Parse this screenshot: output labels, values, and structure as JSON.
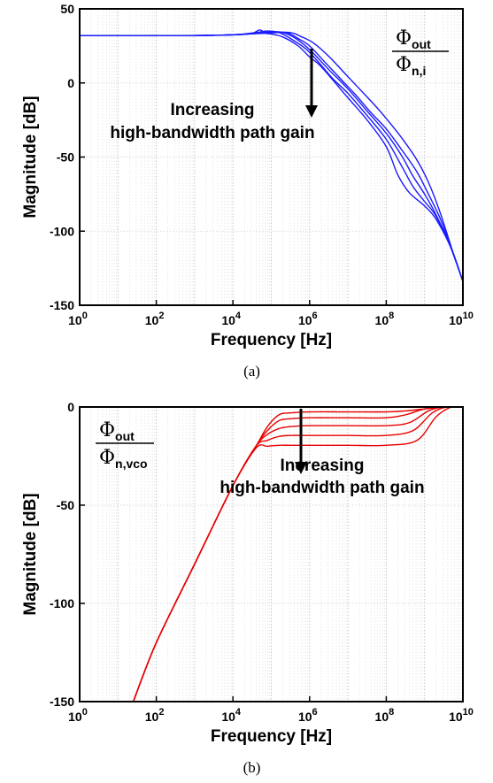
{
  "chart_data": [
    {
      "type": "line",
      "caption": "(a)",
      "xlabel": "Frequency [Hz]",
      "ylabel": "Magnitude [dB]",
      "xscale": "log",
      "xlim_exp": [
        0,
        10
      ],
      "ylim": [
        -150,
        50
      ],
      "yticks": [
        50,
        0,
        -50,
        -100,
        -150
      ],
      "grid": "minor-log-x",
      "color": "#1a1aff",
      "legend_fraction": {
        "num_base": "Φ",
        "num_sub": "out",
        "den_base": "Φ",
        "den_sub": "n,i"
      },
      "legend_placement": "top-right",
      "annotation": {
        "line1": "Increasing",
        "line2": "high-bandwidth path gain",
        "arrow": "down"
      },
      "series": [
        {
          "values": [
            [
              0,
              32
            ],
            [
              2,
              32
            ],
            [
              3,
              32
            ],
            [
              4,
              32.4
            ],
            [
              4.5,
              33.5
            ],
            [
              4.7,
              35.8
            ],
            [
              4.85,
              33.5
            ],
            [
              5,
              33
            ],
            [
              5.3,
              31
            ],
            [
              5.7,
              25
            ],
            [
              6,
              17.5
            ],
            [
              6.3,
              11
            ],
            [
              7,
              -10
            ],
            [
              7.5,
              -25
            ],
            [
              8,
              -43
            ],
            [
              8.3,
              -62
            ],
            [
              8.6,
              -74
            ],
            [
              9,
              -83
            ],
            [
              9.3,
              -92
            ],
            [
              9.7,
              -112
            ],
            [
              10,
              -134
            ]
          ]
        },
        {
          "values": [
            [
              0,
              32
            ],
            [
              2,
              32
            ],
            [
              3,
              32
            ],
            [
              4,
              32.5
            ],
            [
              4.6,
              34
            ],
            [
              4.9,
              35
            ],
            [
              5.2,
              34
            ],
            [
              5.5,
              30
            ],
            [
              5.9,
              23
            ],
            [
              6.2,
              15
            ],
            [
              6.6,
              3
            ],
            [
              7,
              -7
            ],
            [
              7.5,
              -22
            ],
            [
              8,
              -38
            ],
            [
              8.4,
              -56
            ],
            [
              8.7,
              -70
            ],
            [
              9,
              -80
            ],
            [
              9.3,
              -90
            ],
            [
              9.7,
              -112
            ],
            [
              10,
              -134
            ]
          ]
        },
        {
          "values": [
            [
              0,
              32
            ],
            [
              2,
              32
            ],
            [
              3,
              32
            ],
            [
              4,
              32.5
            ],
            [
              4.8,
              34
            ],
            [
              5.2,
              34.5
            ],
            [
              5.5,
              32
            ],
            [
              5.8,
              27
            ],
            [
              6.1,
              20
            ],
            [
              6.5,
              9
            ],
            [
              7,
              -4
            ],
            [
              7.5,
              -19
            ],
            [
              8,
              -34
            ],
            [
              8.4,
              -49
            ],
            [
              8.7,
              -63
            ],
            [
              9,
              -75
            ],
            [
              9.3,
              -89
            ],
            [
              9.7,
              -112
            ],
            [
              10,
              -134
            ]
          ]
        },
        {
          "values": [
            [
              0,
              32
            ],
            [
              2,
              32
            ],
            [
              3,
              32
            ],
            [
              4,
              32.5
            ],
            [
              5,
              34
            ],
            [
              5.4,
              34
            ],
            [
              5.7,
              30
            ],
            [
              6,
              25
            ],
            [
              6.4,
              14
            ],
            [
              6.8,
              3
            ],
            [
              7.2,
              -8
            ],
            [
              7.6,
              -20
            ],
            [
              8,
              -31
            ],
            [
              8.4,
              -45
            ],
            [
              8.8,
              -60
            ],
            [
              9.1,
              -75
            ],
            [
              9.4,
              -91
            ],
            [
              9.7,
              -112
            ],
            [
              10,
              -134
            ]
          ]
        },
        {
          "values": [
            [
              0,
              32
            ],
            [
              2,
              32
            ],
            [
              3,
              32
            ],
            [
              4,
              32.5
            ],
            [
              5,
              33.8
            ],
            [
              5.5,
              34
            ],
            [
              5.8,
              31
            ],
            [
              6.1,
              27
            ],
            [
              6.5,
              18
            ],
            [
              6.9,
              7
            ],
            [
              7.3,
              -4
            ],
            [
              7.7,
              -15
            ],
            [
              8,
              -24
            ],
            [
              8.4,
              -37
            ],
            [
              8.8,
              -52
            ],
            [
              9.1,
              -67
            ],
            [
              9.4,
              -87
            ],
            [
              9.7,
              -111
            ],
            [
              10,
              -134
            ]
          ]
        }
      ]
    },
    {
      "type": "line",
      "caption": "(b)",
      "xlabel": "Frequency [Hz]",
      "ylabel": "Magnitude [dB]",
      "xscale": "log",
      "xlim_exp": [
        0,
        10
      ],
      "ylim": [
        -150,
        0
      ],
      "yticks": [
        0,
        -50,
        -100,
        -150
      ],
      "grid": "minor-log-x",
      "color": "#e60000",
      "legend_fraction": {
        "num_base": "Φ",
        "num_sub": "out",
        "den_base": "Φ",
        "den_sub": "n,vco"
      },
      "legend_placement": "top-left",
      "annotation": {
        "line1": "Increasing",
        "line2": "high-bandwidth path gain",
        "arrow": "down"
      },
      "series": [
        {
          "values": [
            [
              1.4,
              -150
            ],
            [
              2,
              -120
            ],
            [
              3,
              -80
            ],
            [
              4,
              -40
            ],
            [
              4.6,
              -20
            ],
            [
              4.9,
              -10
            ],
            [
              5.2,
              -4
            ],
            [
              5.5,
              -3
            ],
            [
              6,
              -2.5
            ],
            [
              7,
              -2.5
            ],
            [
              8,
              -2.5
            ],
            [
              8.5,
              -2
            ],
            [
              9,
              -1
            ],
            [
              9.5,
              0
            ],
            [
              10,
              0
            ]
          ]
        },
        {
          "values": [
            [
              1.4,
              -150
            ],
            [
              2,
              -120
            ],
            [
              3,
              -80
            ],
            [
              4,
              -40
            ],
            [
              4.6,
              -20
            ],
            [
              4.9,
              -12
            ],
            [
              5.2,
              -7
            ],
            [
              5.5,
              -6
            ],
            [
              6,
              -5.5
            ],
            [
              7,
              -5.5
            ],
            [
              8,
              -5.5
            ],
            [
              8.5,
              -4
            ],
            [
              9,
              -1
            ],
            [
              9.5,
              0
            ],
            [
              10,
              0
            ]
          ]
        },
        {
          "values": [
            [
              1.4,
              -150
            ],
            [
              2,
              -120
            ],
            [
              3,
              -80
            ],
            [
              4,
              -40
            ],
            [
              4.6,
              -20
            ],
            [
              4.9,
              -14
            ],
            [
              5.2,
              -11
            ],
            [
              5.5,
              -10
            ],
            [
              6,
              -9.5
            ],
            [
              7,
              -9.5
            ],
            [
              8,
              -9.5
            ],
            [
              8.6,
              -8
            ],
            [
              9.1,
              -2
            ],
            [
              9.5,
              0
            ],
            [
              10,
              0
            ]
          ]
        },
        {
          "values": [
            [
              1.4,
              -150
            ],
            [
              2,
              -120
            ],
            [
              3,
              -80
            ],
            [
              4,
              -40
            ],
            [
              4.6,
              -20
            ],
            [
              4.9,
              -17
            ],
            [
              5.2,
              -15
            ],
            [
              5.5,
              -14.5
            ],
            [
              6,
              -14.5
            ],
            [
              7,
              -14.5
            ],
            [
              8,
              -14.5
            ],
            [
              8.7,
              -12
            ],
            [
              9.2,
              -3
            ],
            [
              9.6,
              0
            ],
            [
              10,
              0
            ]
          ]
        },
        {
          "values": [
            [
              1.4,
              -150
            ],
            [
              2,
              -120
            ],
            [
              3,
              -80
            ],
            [
              4,
              -40
            ],
            [
              4.6,
              -21
            ],
            [
              4.9,
              -20
            ],
            [
              5.2,
              -19.5
            ],
            [
              5.5,
              -19.5
            ],
            [
              6,
              -19.5
            ],
            [
              7,
              -19.5
            ],
            [
              8,
              -19.5
            ],
            [
              8.8,
              -17
            ],
            [
              9.3,
              -5
            ],
            [
              9.7,
              0
            ],
            [
              10,
              0
            ]
          ]
        }
      ]
    }
  ]
}
